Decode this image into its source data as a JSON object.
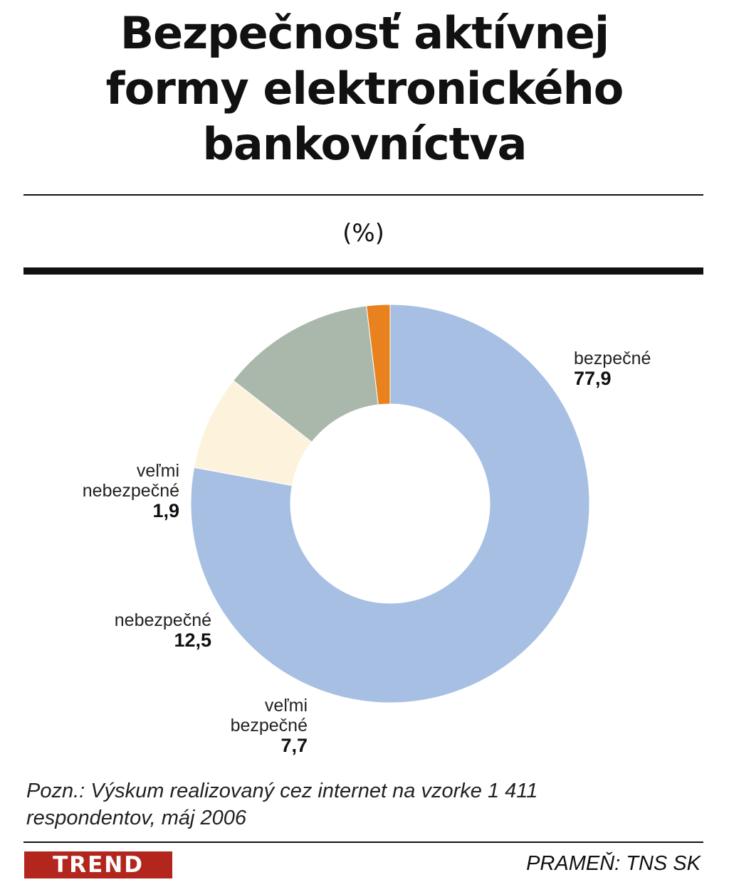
{
  "header": {
    "title_lines": [
      "Bezpečnosť aktívnej",
      "formy elektronického",
      "bankovníctva"
    ],
    "unit": "(%)"
  },
  "chart_data": {
    "type": "pie",
    "title": "Bezpečnosť aktívnej formy elektronického bankovníctva",
    "unit": "%",
    "donut": true,
    "slices": [
      {
        "label": "bezpečné",
        "value": 77.9,
        "value_text": "77,9",
        "color": "#a6bfe3"
      },
      {
        "label": "veľmi bezpečné",
        "value": 7.7,
        "value_text": "7,7",
        "color": "#fdf3dc"
      },
      {
        "label": "nebezpečné",
        "value": 12.5,
        "value_text": "12,5",
        "color": "#aab8ac"
      },
      {
        "label": "veľmi nebezpečné",
        "value": 1.9,
        "value_text": "1,9",
        "color": "#e9821e"
      }
    ],
    "labels": {
      "bezpecne": {
        "line1": "bezpečné",
        "value": "77,9"
      },
      "velmi_bezpecne": {
        "line1": "veľmi",
        "line2": "bezpečné",
        "value": "7,7"
      },
      "nebezpecne": {
        "line1": "nebezpečné",
        "value": "12,5"
      },
      "velmi_nebezpecne": {
        "line1": "veľmi",
        "line2": "nebezpečné",
        "value": "1,9"
      }
    }
  },
  "footer": {
    "note_line1": "Pozn.: Výskum realizovaný cez internet na vzorke 1 411",
    "note_line2": "respondentov, máj 2006",
    "brand": "TREND",
    "source": "PRAMEŇ: TNS SK"
  }
}
